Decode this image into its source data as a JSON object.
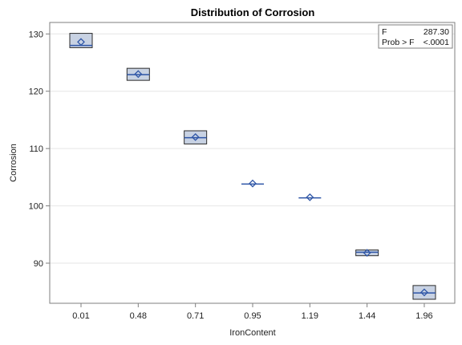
{
  "chart_data": {
    "type": "box",
    "title": "Distribution of Corrosion",
    "xlabel": "IronContent",
    "ylabel": "Corrosion",
    "categories": [
      "0.01",
      "0.48",
      "0.71",
      "0.95",
      "1.19",
      "1.44",
      "1.96"
    ],
    "ylim": [
      83,
      132
    ],
    "yticks": [
      90,
      100,
      110,
      120,
      130
    ],
    "grid": "horizontal",
    "boxes": [
      {
        "q1": 127.6,
        "median": 128.0,
        "q3": 130.1,
        "mean": 128.6
      },
      {
        "q1": 121.9,
        "median": 122.9,
        "q3": 124.0,
        "mean": 123.0
      },
      {
        "q1": 110.8,
        "median": 111.9,
        "q3": 113.1,
        "mean": 112.0
      },
      {
        "q1": 103.8,
        "median": 103.8,
        "q3": 103.8,
        "mean": 103.9
      },
      {
        "q1": 101.4,
        "median": 101.4,
        "q3": 101.4,
        "mean": 101.5
      },
      {
        "q1": 91.3,
        "median": 91.9,
        "q3": 92.3,
        "mean": 91.8
      },
      {
        "q1": 83.7,
        "median": 84.8,
        "q3": 86.1,
        "mean": 84.9
      }
    ],
    "box_fill": "#c8d2e3",
    "box_stroke": "#2b2b2b",
    "mean_marker_color": "#2e55a6",
    "median_line_color": "#2e55a6",
    "legend_placement": "top-right",
    "stats": {
      "f_label": "F",
      "f_value": "287.30",
      "p_label": "Prob > F",
      "p_value": "<.0001"
    }
  }
}
